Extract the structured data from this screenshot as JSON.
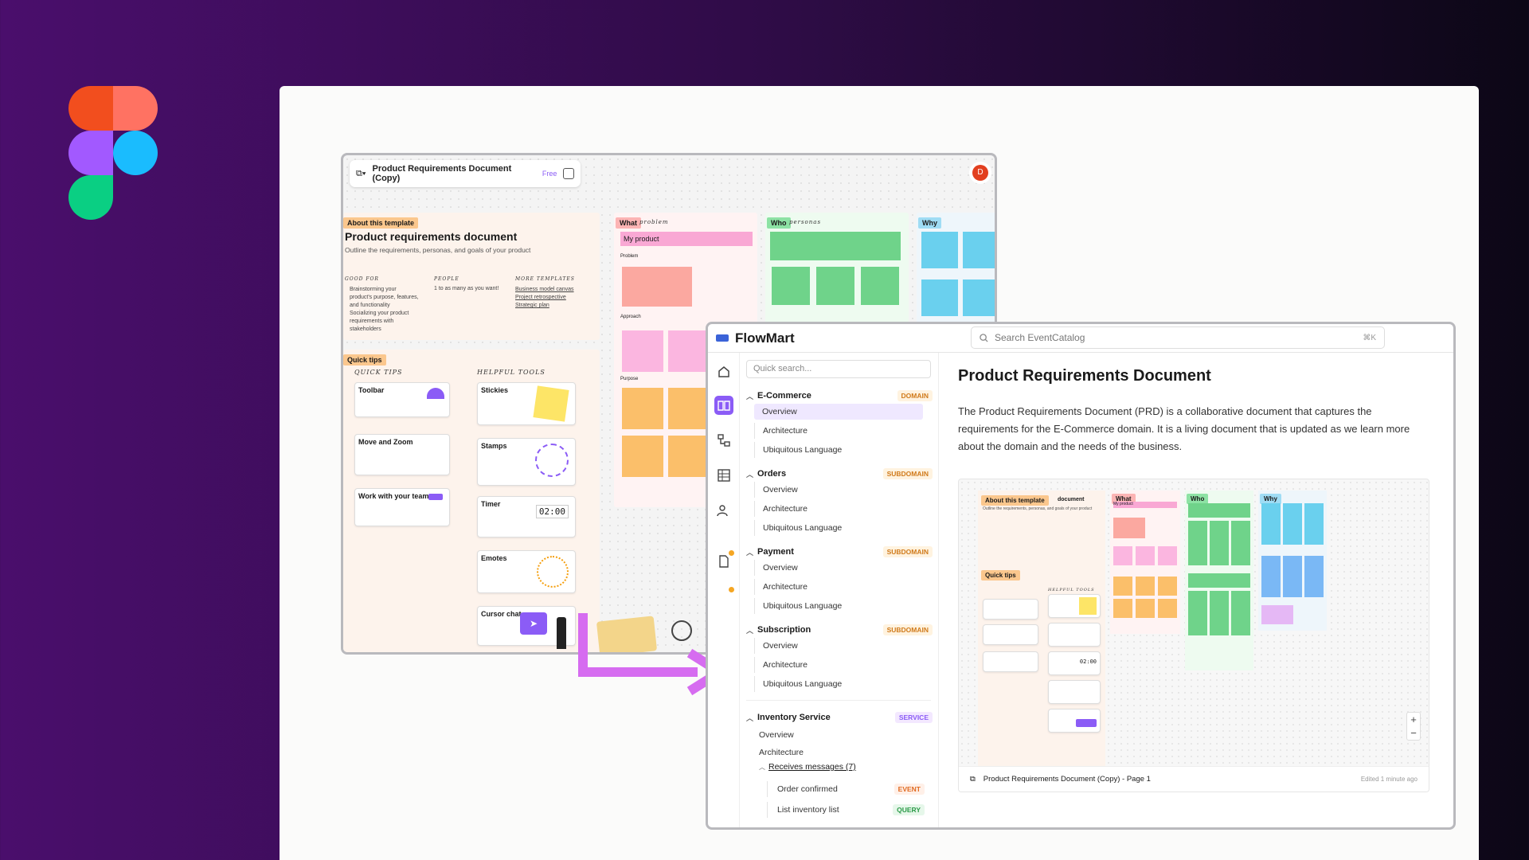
{
  "figma_window": {
    "title": "Product Requirements Document (Copy)",
    "plan": "Free",
    "avatar_initial": "D",
    "about_tag": "About this template",
    "doc_title": "Product requirements document",
    "doc_subtitle": "Outline the requirements, personas, and goals of your product",
    "good_for_label": "GOOD FOR",
    "good_for_items": [
      "Brainstorming your product's purpose, features, and functionality",
      "Socializing your product requirements with stakeholders"
    ],
    "people_label": "PEOPLE",
    "people_text": "1 to as many as you want!",
    "more_templates_label": "MORE TEMPLATES",
    "more_templates": [
      "Business model canvas",
      "Project retrospective",
      "Strategic plan"
    ],
    "quick_tips_tag": "Quick tips",
    "quick_tips_heading": "QUICK TIPS",
    "helpful_tools_heading": "HELPFUL TOOLS",
    "tips": [
      "Toolbar",
      "Move and Zoom",
      "Work with your team"
    ],
    "tools": [
      "Stickies",
      "Stamps",
      "Timer",
      "Emotes",
      "Cursor chat"
    ],
    "timer_value": "02:00",
    "what_tag": "What",
    "what_script": "problem",
    "my_product": "My product",
    "problem_label": "Problem",
    "approach_label": "Approach",
    "purpose_label": "Purpose",
    "who_tag": "Who",
    "who_script": "personas",
    "why_tag": "Why"
  },
  "flowmart": {
    "brand": "FlowMart",
    "search_placeholder": "Search EventCatalog",
    "search_shortcut": "⌘K",
    "quick_search": "Quick search...",
    "groups": [
      {
        "name": "E-Commerce",
        "badge": "DOMAIN",
        "items": [
          "Overview",
          "Architecture",
          "Ubiquitous Language"
        ]
      },
      {
        "name": "Orders",
        "badge": "SUBDOMAIN",
        "items": [
          "Overview",
          "Architecture",
          "Ubiquitous Language"
        ]
      },
      {
        "name": "Payment",
        "badge": "SUBDOMAIN",
        "items": [
          "Overview",
          "Architecture",
          "Ubiquitous Language"
        ]
      },
      {
        "name": "Subscription",
        "badge": "SUBDOMAIN",
        "items": [
          "Overview",
          "Architecture",
          "Ubiquitous Language"
        ]
      }
    ],
    "service": {
      "name": "Inventory Service",
      "badge": "SERVICE",
      "items": [
        "Overview",
        "Architecture"
      ],
      "receives": "Receives messages (7)",
      "messages": [
        {
          "name": "Order confirmed",
          "badge": "EVENT"
        },
        {
          "name": "List inventory list",
          "badge": "QUERY"
        }
      ]
    },
    "page_title": "Product Requirements Document",
    "description": "The Product Requirements Document (PRD) is a collaborative document that captures the requirements for the E-Commerce domain. It is a living document that is updated as we learn more about the domain and the needs of the business.",
    "embed": {
      "file": "Product Requirements Document (Copy) - Page 1",
      "edited": "Edited 1 minute ago",
      "about_tag": "About this template",
      "doc_title": "document",
      "subtitle": "Outline the requirements, personas, and goals of your product",
      "quick_tips": "Quick tips",
      "helpful_tools": "HELPFUL TOOLS",
      "timer": "02:00",
      "what": "What",
      "my_product": "My product",
      "who": "Who",
      "why": "Why"
    }
  },
  "colors": {
    "accent": "#8b5cf6",
    "orange": "#fbbf6a",
    "green": "#6fd38a",
    "blue": "#6ad0ee",
    "pink": "#f9a8d4"
  }
}
